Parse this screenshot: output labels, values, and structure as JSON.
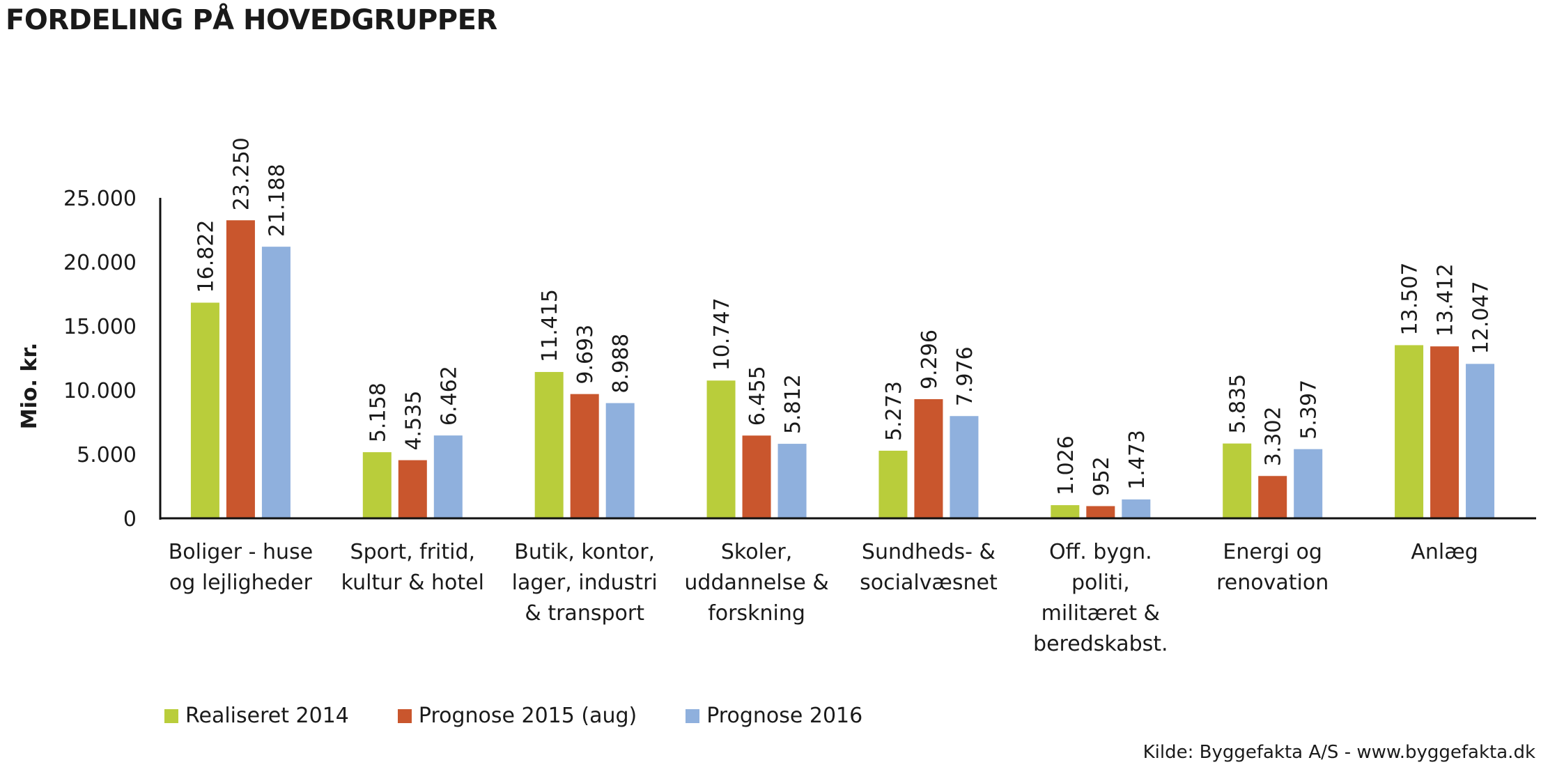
{
  "chart_data": {
    "type": "bar",
    "title": "FORDELING PÅ HOVEDGRUPPER",
    "ylabel": "Mio. kr.",
    "xlabel": "",
    "ylim": [
      0,
      25000
    ],
    "yticks": [
      "0",
      "5.000",
      "10.000",
      "15.000",
      "20.000",
      "25.000"
    ],
    "ytick_values": [
      0,
      5000,
      10000,
      15000,
      20000,
      25000
    ],
    "grid": false,
    "legend_position": "bottom",
    "categories": [
      [
        "Boliger - huse",
        "og lejligheder"
      ],
      [
        "Sport, fritid,",
        "kultur & hotel"
      ],
      [
        "Butik, kontor,",
        "lager, industri",
        "& transport"
      ],
      [
        "Skoler,",
        "uddannelse &",
        "forskning"
      ],
      [
        "Sundheds- &",
        "socialvæsnet"
      ],
      [
        "Off. bygn.",
        "politi,",
        "militæret &",
        "beredskabst."
      ],
      [
        "Energi og",
        "renovation"
      ],
      [
        "Anlæg"
      ]
    ],
    "series": [
      {
        "name": "Realiseret 2014",
        "color": "#b9cd3b",
        "values": [
          16822,
          5158,
          11415,
          10747,
          5273,
          1026,
          5835,
          13507
        ],
        "labels": [
          "16.822",
          "5.158",
          "11.415",
          "10.747",
          "5.273",
          "1.026",
          "5.835",
          "13.507"
        ]
      },
      {
        "name": "Prognose 2015 (aug)",
        "color": "#c9562d",
        "values": [
          23250,
          4535,
          9693,
          6455,
          9296,
          952,
          3302,
          13412
        ],
        "labels": [
          "23.250",
          "4.535",
          "9.693",
          "6.455",
          "9.296",
          "952",
          "3.302",
          "13.412"
        ]
      },
      {
        "name": "Prognose 2016",
        "color": "#8fb0dd",
        "values": [
          21188,
          6462,
          8988,
          5812,
          7976,
          1473,
          5397,
          12047
        ],
        "labels": [
          "21.188",
          "6.462",
          "8.988",
          "5.812",
          "7.976",
          "1.473",
          "5.397",
          "12.047"
        ]
      }
    ]
  },
  "source": "Kilde: Byggefakta A/S - www.byggefakta.dk"
}
